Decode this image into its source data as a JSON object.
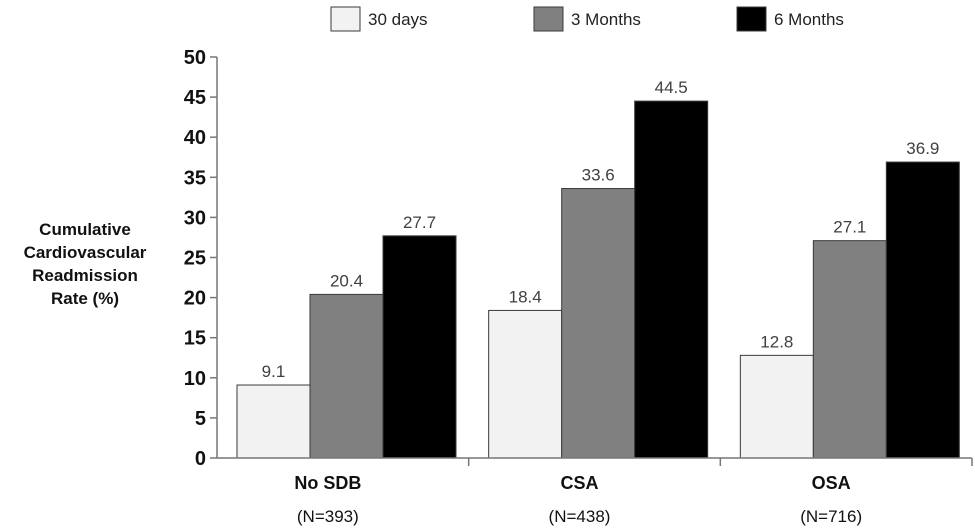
{
  "chart_data": {
    "type": "bar",
    "categories": [
      "No SDB",
      "CSA",
      "OSA"
    ],
    "category_sublabels": [
      "(N=393)",
      "(N=438)",
      "(N=716)"
    ],
    "series": [
      {
        "name": "30 days",
        "values": [
          9.1,
          18.4,
          12.8
        ],
        "color": "#f2f2f2"
      },
      {
        "name": "3 Months",
        "values": [
          20.4,
          33.6,
          27.1
        ],
        "color": "#808080"
      },
      {
        "name": "6 Months",
        "values": [
          27.7,
          44.5,
          36.9
        ],
        "color": "#000000"
      }
    ],
    "data_labels": [
      [
        "9.1",
        "18.4",
        "12.8"
      ],
      [
        "20.4",
        "33.6",
        "27.1"
      ],
      [
        "27.7",
        "44.5",
        "36.9"
      ]
    ],
    "title": "",
    "xlabel": "",
    "ylabel_lines": [
      "Cumulative",
      "Cardiovascular",
      "Readmission",
      "Rate (%)"
    ],
    "ylim": [
      0,
      50
    ],
    "yticks": [
      0,
      5,
      10,
      15,
      20,
      25,
      30,
      35,
      40,
      45,
      50
    ],
    "grid": false,
    "legend_position": "top"
  }
}
